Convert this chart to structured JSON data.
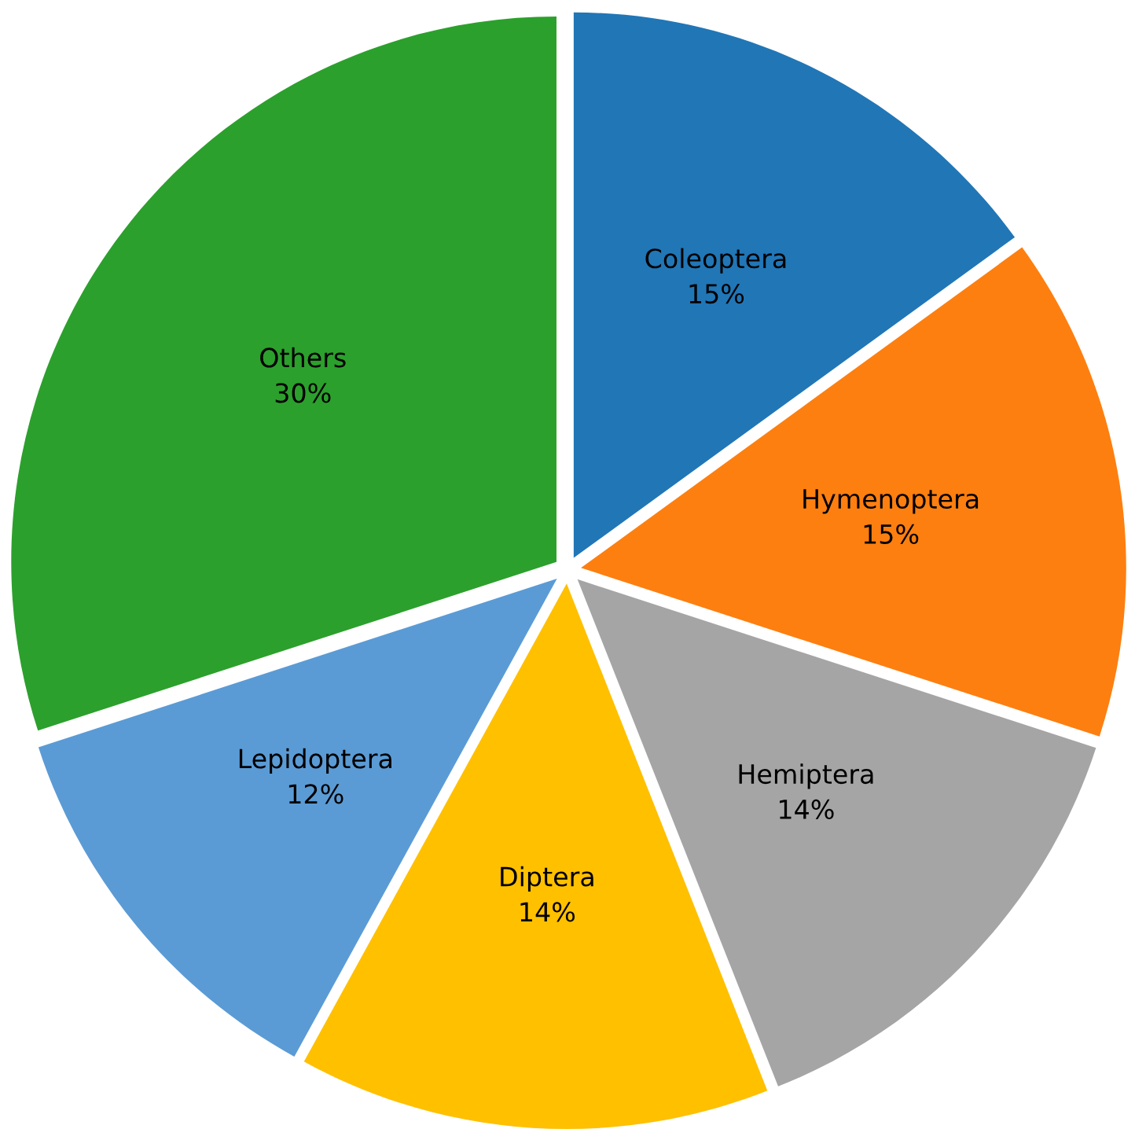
{
  "chart_data": {
    "type": "pie",
    "categories": [
      "Coleoptera",
      "Hymenoptera",
      "Hemiptera",
      "Diptera",
      "Lepidoptera",
      "Others"
    ],
    "values": [
      15,
      15,
      14,
      14,
      12,
      30
    ],
    "value_labels": [
      "15%",
      "15%",
      "14%",
      "14%",
      "12%",
      "30%"
    ],
    "colors": [
      "#2176b6",
      "#fd7f10",
      "#a5a5a5",
      "#ffc000",
      "#5b9bd5",
      "#2ca02c"
    ]
  }
}
